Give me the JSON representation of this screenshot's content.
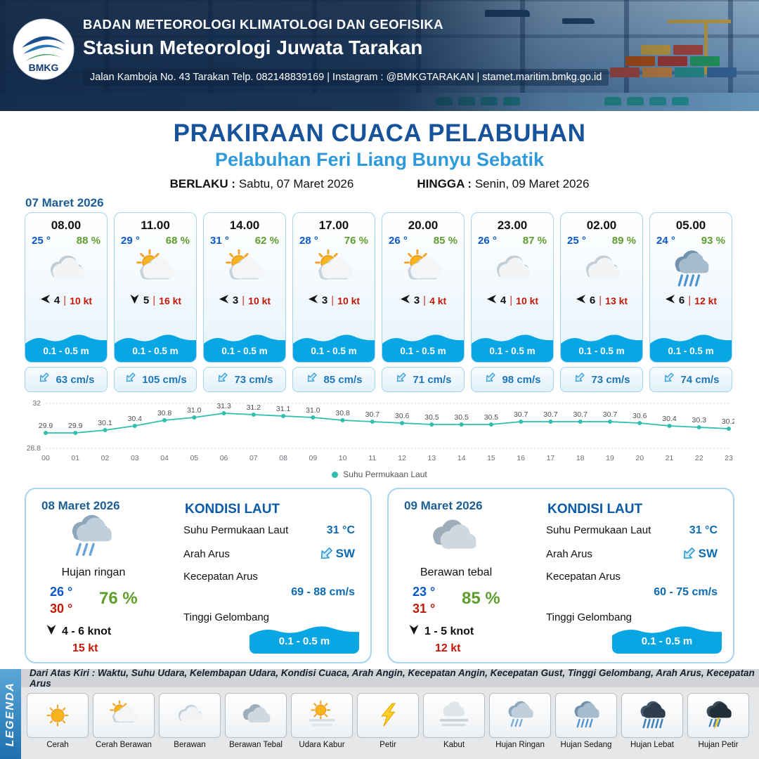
{
  "header": {
    "logo_text": "BMKG",
    "org_name": "BADAN METEOROLOGI KLIMATOLOGI DAN GEOFISIKA",
    "station_name": "Stasiun Meteorologi Juwata Tarakan",
    "address_line": "Jalan Kamboja No. 43 Tarakan  Telp. 082148839169 | Instagram : @BMKGTARAKAN | stamet.maritim.bmkg.go.id"
  },
  "title": {
    "main": "PRAKIRAAN CUACA PELABUHAN",
    "subtitle": "Pelabuhan Feri Liang Bunyu Sebatik",
    "valid_from_label": "BERLAKU :",
    "valid_from": "Sabtu, 07 Maret 2026",
    "valid_to_label": "HINGGA :",
    "valid_to": "Senin, 09 Maret 2026"
  },
  "day1": {
    "date": "07 Maret 2026",
    "cards": [
      {
        "time": "08.00",
        "temp": "25 °",
        "humidity": "88 %",
        "icon": "berawan",
        "wind_arrow": "left",
        "wind_speed": "4",
        "gust": "10 kt",
        "wave": "0.1 - 0.5 m",
        "current": "63 cm/s"
      },
      {
        "time": "11.00",
        "temp": "29 °",
        "humidity": "68 %",
        "icon": "cerah-berawan",
        "wind_arrow": "down",
        "wind_speed": "5",
        "gust": "16 kt",
        "wave": "0.1 - 0.5 m",
        "current": "105 cm/s"
      },
      {
        "time": "14.00",
        "temp": "31 °",
        "humidity": "62 %",
        "icon": "cerah-berawan",
        "wind_arrow": "left",
        "wind_speed": "3",
        "gust": "10 kt",
        "wave": "0.1 - 0.5 m",
        "current": "73 cm/s"
      },
      {
        "time": "17.00",
        "temp": "28 °",
        "humidity": "76 %",
        "icon": "cerah-berawan",
        "wind_arrow": "left",
        "wind_speed": "3",
        "gust": "10 kt",
        "wave": "0.1 - 0.5 m",
        "current": "85 cm/s"
      },
      {
        "time": "20.00",
        "temp": "26 °",
        "humidity": "85 %",
        "icon": "cerah-berawan",
        "wind_arrow": "left",
        "wind_speed": "3",
        "gust": "4 kt",
        "wave": "0.1 - 0.5 m",
        "current": "71 cm/s"
      },
      {
        "time": "23.00",
        "temp": "26 °",
        "humidity": "87 %",
        "icon": "berawan",
        "wind_arrow": "left",
        "wind_speed": "4",
        "gust": "10 kt",
        "wave": "0.1 - 0.5 m",
        "current": "98 cm/s"
      },
      {
        "time": "02.00",
        "temp": "25 °",
        "humidity": "89 %",
        "icon": "berawan",
        "wind_arrow": "left",
        "wind_speed": "6",
        "gust": "13 kt",
        "wave": "0.1 - 0.5 m",
        "current": "73 cm/s"
      },
      {
        "time": "05.00",
        "temp": "24 °",
        "humidity": "93 %",
        "icon": "hujan-sedang",
        "wind_arrow": "left",
        "wind_speed": "6",
        "gust": "12 kt",
        "wave": "0.1 - 0.5 m",
        "current": "74 cm/s"
      }
    ]
  },
  "chart_data": {
    "type": "line",
    "x": [
      "00",
      "01",
      "02",
      "03",
      "04",
      "05",
      "06",
      "07",
      "08",
      "09",
      "10",
      "11",
      "12",
      "13",
      "14",
      "15",
      "16",
      "17",
      "18",
      "19",
      "20",
      "21",
      "22",
      "23"
    ],
    "values": [
      29.9,
      29.9,
      30.1,
      30.4,
      30.8,
      31.0,
      31.3,
      31.2,
      31.1,
      31.0,
      30.8,
      30.7,
      30.6,
      30.5,
      30.5,
      30.5,
      30.7,
      30.7,
      30.7,
      30.7,
      30.6,
      30.4,
      30.3,
      30.2
    ],
    "ylim": [
      28.8,
      32
    ],
    "legend": "Suhu Permukaan Laut",
    "line_color": "#2fbfae",
    "grid": "dotted-top-bottom",
    "xlabel": "",
    "ylabel": ""
  },
  "days": [
    {
      "date": "08 Maret 2026",
      "icon": "hujan-ringan",
      "condition": "Hujan ringan",
      "temp_min": "26 °",
      "temp_max": "30 °",
      "humidity": "76 %",
      "wind_arrow": "down",
      "wind_range": "4 - 6 knot",
      "gust": "15 kt",
      "sea": {
        "heading": "KONDISI LAUT",
        "sst_label": "Suhu Permukaan Laut",
        "sst_value": "31 °C",
        "current_dir_label": "Arah Arus",
        "current_dir": "SW",
        "current_speed_label": "Kecepatan Arus",
        "current_speed": "69 - 88 cm/s",
        "wave_label": "Tinggi Gelombang",
        "wave_value": "0.1 - 0.5 m"
      }
    },
    {
      "date": "09 Maret 2026",
      "icon": "berawan-tebal",
      "condition": "Berawan tebal",
      "temp_min": "23 °",
      "temp_max": "31 °",
      "humidity": "85 %",
      "wind_arrow": "down",
      "wind_range": "1 - 5 knot",
      "gust": "12 kt",
      "sea": {
        "heading": "KONDISI LAUT",
        "sst_label": "Suhu Permukaan Laut",
        "sst_value": "31 °C",
        "current_dir_label": "Arah Arus",
        "current_dir": "SW",
        "current_speed_label": "Kecepatan Arus",
        "current_speed": "60 - 75 cm/s",
        "wave_label": "Tinggi Gelombang",
        "wave_value": "0.1 - 0.5 m"
      }
    }
  ],
  "legend": {
    "title": "LEGENDA",
    "description": "Dari Atas Kiri : Waktu, Suhu Udara, Kelembapan Udara, Kondisi Cuaca, Arah Angin, Kecepatan Angin, Kecepatan Gust, Tinggi Gelombang, Arah Arus, Kecepatan Arus",
    "items": [
      {
        "label": "Cerah",
        "icon": "cerah"
      },
      {
        "label": "Cerah Berawan",
        "icon": "cerah-berawan"
      },
      {
        "label": "Berawan",
        "icon": "berawan"
      },
      {
        "label": "Berawan Tebal",
        "icon": "berawan-tebal"
      },
      {
        "label": "Udara Kabur",
        "icon": "udara-kabur"
      },
      {
        "label": "Petir",
        "icon": "petir"
      },
      {
        "label": "Kabut",
        "icon": "kabut"
      },
      {
        "label": "Hujan Ringan",
        "icon": "hujan-ringan"
      },
      {
        "label": "Hujan Sedang",
        "icon": "hujan-sedang"
      },
      {
        "label": "Hujan Lebat",
        "icon": "hujan-lebat"
      },
      {
        "label": "Hujan Petir",
        "icon": "hujan-petir"
      }
    ]
  },
  "colors": {
    "wave_blue": "#09a6e4",
    "temp_blue": "#0a58c8",
    "humidity_green": "#5f9e2e",
    "gust_red": "#c21807",
    "title_navy": "#17539b",
    "subtitle_blue": "#2e9ad9",
    "chart_teal": "#2fbfae"
  }
}
